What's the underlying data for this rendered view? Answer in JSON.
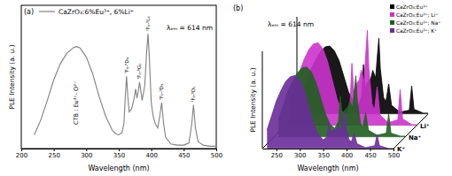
{
  "chart_data": [
    {
      "type": "line",
      "title": "(a)",
      "subtitle": "λₑₘ = 614 nm",
      "x_label": "Wavelength (nm)",
      "y_label": "PLE Intensity (a. u.)",
      "xlim": [
        200,
        500
      ],
      "xticks": [
        200,
        250,
        300,
        350,
        400,
        450,
        500
      ],
      "ylim": [
        0,
        125
      ],
      "tick_labels": "x",
      "grid": false,
      "legend": "upper left",
      "band_label": {
        "text": "CTB : Eu³⁺- O²⁻",
        "x": 285
      },
      "annotations": [
        {
          "text": "⁷F₀-⁵D₄",
          "x": 362
        },
        {
          "text": "⁷F₀-⁵G₂",
          "x": 382
        },
        {
          "text": "⁷F₀-⁵L₆",
          "x": 395
        },
        {
          "text": "⁷F₀-⁵D₃",
          "x": 416
        },
        {
          "text": "⁷F₀-⁵D₂",
          "x": 465
        }
      ],
      "x": [
        220,
        230,
        240,
        250,
        260,
        270,
        280,
        285,
        290,
        300,
        310,
        320,
        330,
        340,
        345,
        350,
        355,
        358,
        360,
        362,
        364,
        366,
        370,
        374,
        376,
        378,
        380,
        382,
        384,
        386,
        390,
        393,
        395,
        397,
        400,
        403,
        406,
        410,
        413,
        416,
        419,
        422,
        430,
        440,
        450,
        458,
        462,
        465,
        468,
        472,
        480,
        490,
        500
      ],
      "series": [
        {
          "name": "CaZrO₃:6%Eu³⁺, 6%Li⁺",
          "color": "#808080",
          "values": [
            12,
            25,
            42,
            60,
            74,
            83,
            88,
            89,
            88,
            80,
            65,
            45,
            28,
            16,
            13,
            12,
            14,
            22,
            45,
            63,
            45,
            32,
            35,
            45,
            52,
            44,
            50,
            58,
            50,
            42,
            55,
            85,
            100,
            80,
            40,
            28,
            22,
            18,
            28,
            40,
            22,
            10,
            4,
            3,
            3,
            5,
            20,
            38,
            18,
            6,
            3,
            2,
            2
          ]
        }
      ]
    },
    {
      "type": "waterfall",
      "title": "(b)",
      "subtitle": "λₑₘ = 614 nm",
      "x_label": "Wavelength (nm)",
      "y_label": "PLE Intensity (a. u.)",
      "xlim": [
        220,
        500
      ],
      "xticks": [
        250,
        300,
        350,
        400,
        450,
        500
      ],
      "ylim": [
        0,
        100
      ],
      "tick_labels": "x",
      "grid": false,
      "legend": "upper right",
      "z_categories": [
        null,
        "Li⁺",
        "Na⁺",
        "K⁺"
      ],
      "x": [
        230,
        240,
        250,
        260,
        270,
        280,
        290,
        300,
        310,
        320,
        330,
        340,
        350,
        358,
        362,
        366,
        372,
        378,
        382,
        388,
        393,
        395,
        398,
        405,
        410,
        416,
        422,
        440,
        460,
        465,
        470,
        490,
        500
      ],
      "series": [
        {
          "name": "CaZrO₃:Eu³⁺",
          "color": "#000000",
          "values": [
            18,
            32,
            46,
            56,
            64,
            69,
            70,
            65,
            55,
            39,
            23,
            13,
            8,
            18,
            51,
            27,
            34,
            37,
            45,
            37,
            67,
            78,
            47,
            17,
            13,
            31,
            9,
            2,
            4,
            29,
            5,
            1,
            1
          ]
        },
        {
          "name": "CaZrO₃:Eu³⁺; Li⁺",
          "color": "#cc33cc",
          "values": [
            21,
            38,
            55,
            68,
            78,
            84,
            85,
            79,
            66,
            47,
            28,
            15,
            10,
            22,
            64,
            34,
            43,
            47,
            57,
            46,
            84,
            98,
            60,
            22,
            16,
            40,
            11,
            3,
            6,
            37,
            7,
            1,
            1
          ]
        },
        {
          "name": "CaZrO₃:Eu³⁺; Na⁺",
          "color": "#1f5f1f",
          "values": [
            18,
            32,
            47,
            58,
            66,
            71,
            72,
            67,
            56,
            40,
            24,
            13,
            9,
            16,
            42,
            23,
            28,
            31,
            37,
            30,
            54,
            63,
            38,
            14,
            10,
            25,
            7,
            2,
            4,
            24,
            4,
            1,
            1
          ]
        },
        {
          "name": "CaZrO₃:Eu³⁺; K⁺",
          "color": "#6a2c9a",
          "values": [
            19,
            34,
            49,
            60,
            69,
            74,
            75,
            70,
            59,
            41,
            25,
            14,
            9,
            12,
            27,
            16,
            19,
            20,
            23,
            19,
            33,
            38,
            23,
            9,
            7,
            16,
            5,
            1,
            3,
            14,
            3,
            0,
            0
          ]
        }
      ]
    }
  ]
}
